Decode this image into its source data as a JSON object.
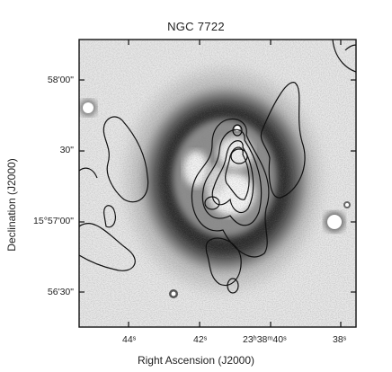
{
  "figure": {
    "title": "NGC 7722",
    "xlabel": "Right Ascension (J2000)",
    "ylabel": "Declination (J2000)",
    "ytick_labels": [
      "58'00\"",
      "30\"",
      "15°57'00\"",
      "56'30\""
    ],
    "xtick_labels": [
      "44ˢ",
      "42ˢ",
      "23ʰ38ᵐ40ˢ",
      "38ˢ"
    ],
    "colors": {
      "frame": "#111111",
      "contour": "#111111",
      "background": "#e7e7e7"
    }
  }
}
